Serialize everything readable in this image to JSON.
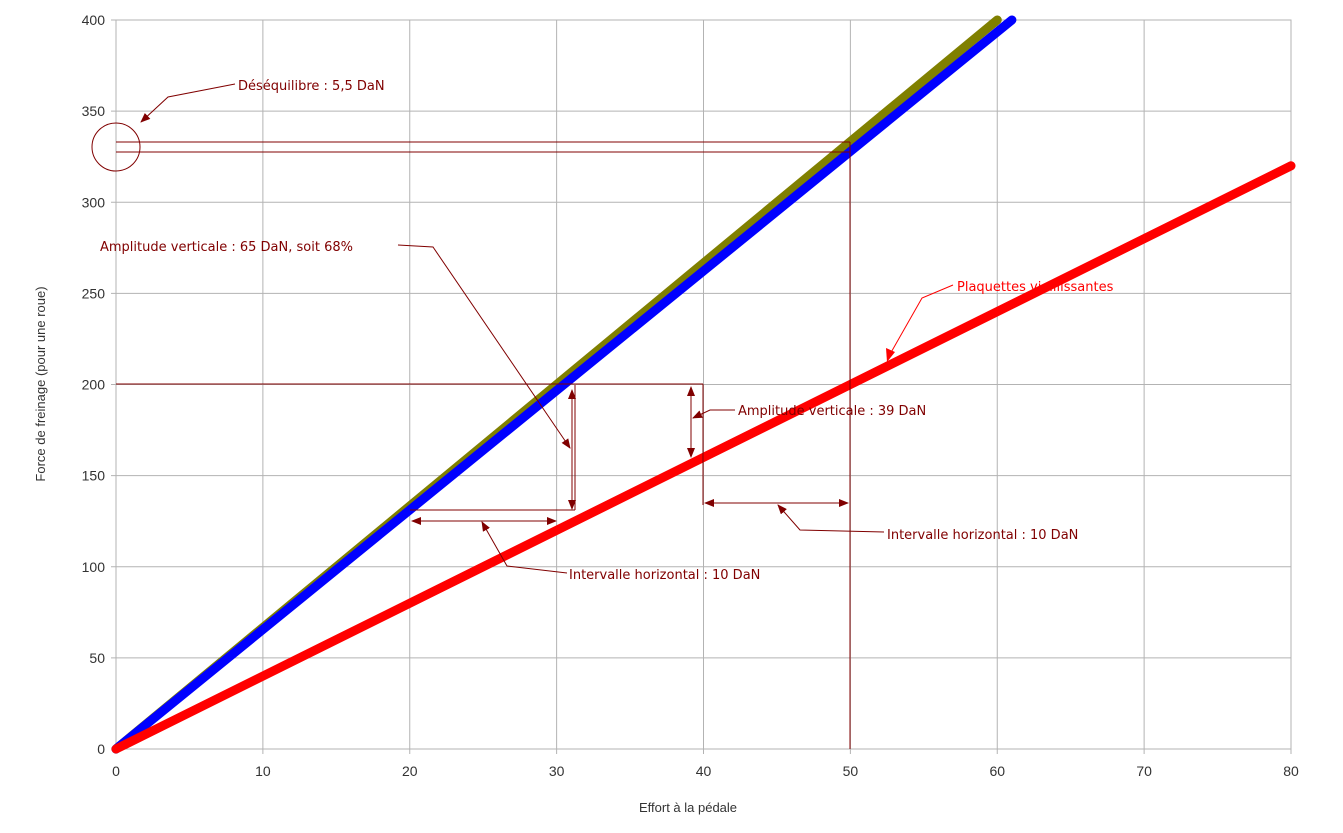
{
  "chart_data": {
    "type": "line",
    "title": "",
    "xlabel": "Effort à la pédale",
    "ylabel": "Force de freinage (pour une roue)",
    "xlim": [
      0,
      80
    ],
    "ylim": [
      0,
      400
    ],
    "x_ticks": [
      0,
      10,
      20,
      30,
      40,
      50,
      60,
      70,
      80
    ],
    "y_ticks": [
      0,
      50,
      100,
      150,
      200,
      250,
      300,
      350,
      400
    ],
    "grid": true,
    "legend": "none",
    "series": [
      {
        "color": "#808000",
        "points": [
          [
            0,
            0
          ],
          [
            60,
            400
          ]
        ]
      },
      {
        "color": "#0000ff",
        "points": [
          [
            0,
            0
          ],
          [
            61,
            400
          ]
        ]
      },
      {
        "color": "#ff0000",
        "points": [
          [
            0,
            0
          ],
          [
            80,
            320
          ]
        ]
      }
    ],
    "annotation_color": "#800000",
    "annotations": [
      {
        "text": "Déséquilibre : 5,5 DaN",
        "color": "#800000"
      },
      {
        "text": "Amplitude verticale : 65 DaN, soit 68%",
        "color": "#800000"
      },
      {
        "text": "Plaquettes vieillissantes",
        "color": "#ff0000"
      },
      {
        "text": "Amplitude verticale : 39 DaN",
        "color": "#800000"
      },
      {
        "text": "Intervalle horizontal : 10 DaN",
        "color": "#800000"
      },
      {
        "text": "Intervalle horizontal : 10 DaN",
        "color": "#800000"
      }
    ]
  }
}
